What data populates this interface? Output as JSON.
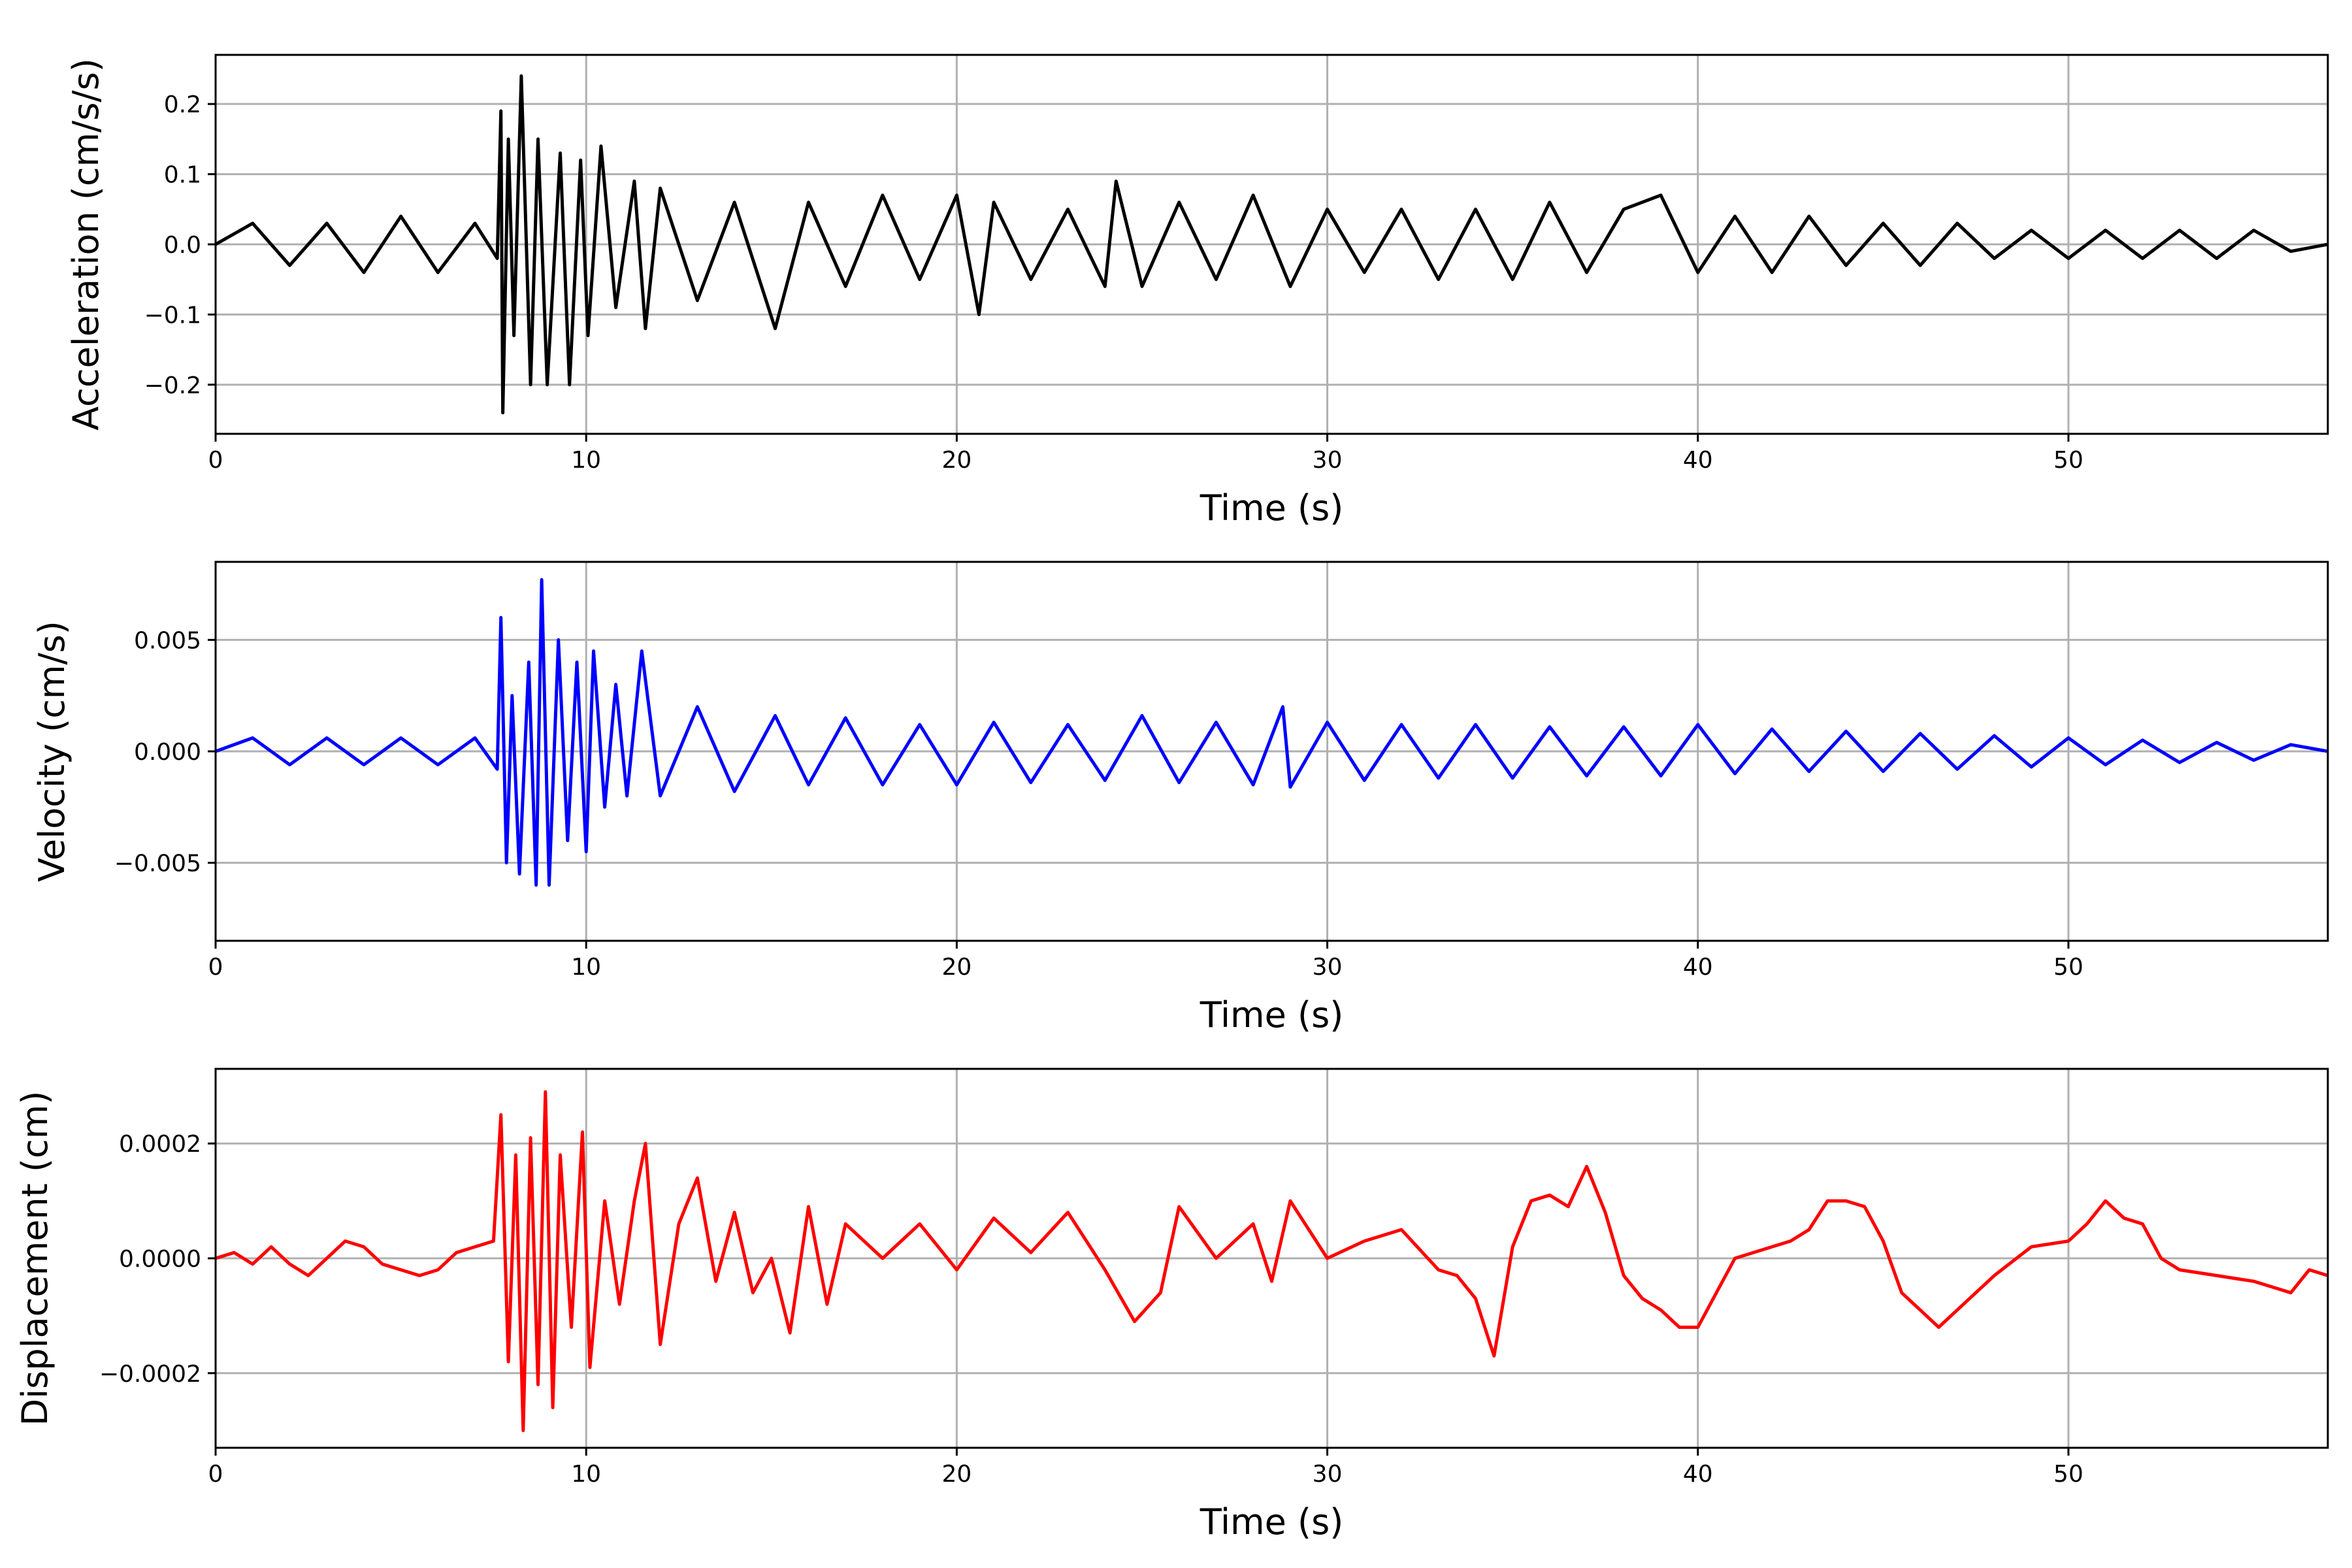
{
  "chart_data": [
    {
      "type": "line",
      "title": "",
      "xlabel": "Time (s)",
      "ylabel": "Acceleration (cm/s/s)",
      "xlim": [
        0,
        57
      ],
      "ylim": [
        -0.27,
        0.27
      ],
      "xticks": [
        0,
        10,
        20,
        30,
        40,
        50
      ],
      "xtick_labels": [
        "0",
        "10",
        "20",
        "30",
        "40",
        "50"
      ],
      "yticks": [
        -0.2,
        -0.1,
        0.0,
        0.1,
        0.2
      ],
      "ytick_labels": [
        "−0.2",
        "−0.1",
        "0.0",
        "0.1",
        "0.2"
      ],
      "grid": true,
      "color": "#000000",
      "series": [
        {
          "x": [
            0,
            1,
            2,
            3,
            4,
            5,
            6,
            7,
            7.6,
            7.7,
            7.75,
            7.9,
            8.05,
            8.25,
            8.5,
            8.7,
            8.95,
            9.3,
            9.55,
            9.85,
            10.05,
            10.4,
            10.8,
            11.3,
            11.6,
            12,
            13,
            14,
            15.1,
            16,
            17,
            18,
            19,
            20,
            20.6,
            21,
            22,
            23,
            24,
            24.3,
            25,
            26,
            27,
            28,
            29,
            30,
            31,
            32,
            33,
            34,
            35,
            36,
            37,
            38,
            39,
            40,
            41,
            42,
            43,
            44,
            45,
            46,
            47,
            48,
            49,
            50,
            51,
            52,
            53,
            54,
            55,
            56,
            57
          ],
          "y": [
            0.0,
            0.03,
            -0.03,
            0.03,
            -0.04,
            0.04,
            -0.04,
            0.03,
            -0.02,
            0.19,
            -0.24,
            0.15,
            -0.13,
            0.24,
            -0.2,
            0.15,
            -0.2,
            0.13,
            -0.2,
            0.12,
            -0.13,
            0.14,
            -0.09,
            0.09,
            -0.12,
            0.08,
            -0.08,
            0.06,
            -0.12,
            0.06,
            -0.06,
            0.07,
            -0.05,
            0.07,
            -0.1,
            0.06,
            -0.05,
            0.05,
            -0.06,
            0.09,
            -0.06,
            0.06,
            -0.05,
            0.07,
            -0.06,
            0.05,
            -0.04,
            0.05,
            -0.05,
            0.05,
            -0.05,
            0.06,
            -0.04,
            0.05,
            0.07,
            -0.04,
            0.04,
            -0.04,
            0.04,
            -0.03,
            0.03,
            -0.03,
            0.03,
            -0.02,
            0.02,
            -0.02,
            0.02,
            -0.02,
            0.02,
            -0.02,
            0.02,
            -0.01,
            0.0
          ]
        }
      ]
    },
    {
      "type": "line",
      "title": "",
      "xlabel": "Time (s)",
      "ylabel": "Velocity (cm/s)",
      "xlim": [
        0,
        57
      ],
      "ylim": [
        -0.0085,
        0.0085
      ],
      "xticks": [
        0,
        10,
        20,
        30,
        40,
        50
      ],
      "xtick_labels": [
        "0",
        "10",
        "20",
        "30",
        "40",
        "50"
      ],
      "yticks": [
        -0.005,
        0.0,
        0.005
      ],
      "ytick_labels": [
        "−0.005",
        "0.000",
        "0.005"
      ],
      "grid": true,
      "color": "#0000ff",
      "series": [
        {
          "x": [
            0,
            1,
            2,
            3,
            4,
            5,
            6,
            7,
            7.6,
            7.7,
            7.85,
            8.0,
            8.2,
            8.45,
            8.65,
            8.8,
            9.0,
            9.25,
            9.5,
            9.75,
            10.0,
            10.2,
            10.5,
            10.8,
            11.1,
            11.5,
            12,
            13,
            14,
            15.1,
            16,
            17,
            18,
            19,
            20,
            21,
            22,
            23,
            24,
            25,
            26,
            27,
            28,
            28.8,
            29,
            30,
            31,
            32,
            33,
            34,
            35,
            36,
            37,
            38,
            39,
            40,
            41,
            42,
            43,
            44,
            45,
            46,
            47,
            48,
            49,
            50,
            51,
            52,
            53,
            54,
            55,
            56,
            57
          ],
          "y": [
            0.0,
            0.0006,
            -0.0006,
            0.0006,
            -0.0006,
            0.0006,
            -0.0006,
            0.0006,
            -0.0008,
            0.006,
            -0.005,
            0.0025,
            -0.0055,
            0.004,
            -0.006,
            0.0077,
            -0.006,
            0.005,
            -0.004,
            0.004,
            -0.0045,
            0.0045,
            -0.0025,
            0.003,
            -0.002,
            0.0045,
            -0.002,
            0.002,
            -0.0018,
            0.0016,
            -0.0015,
            0.0015,
            -0.0015,
            0.0012,
            -0.0015,
            0.0013,
            -0.0014,
            0.0012,
            -0.0013,
            0.0016,
            -0.0014,
            0.0013,
            -0.0015,
            0.002,
            -0.0016,
            0.0013,
            -0.0013,
            0.0012,
            -0.0012,
            0.0012,
            -0.0012,
            0.0011,
            -0.0011,
            0.0011,
            -0.0011,
            0.0012,
            -0.001,
            0.001,
            -0.0009,
            0.0009,
            -0.0009,
            0.0008,
            -0.0008,
            0.0007,
            -0.0007,
            0.0006,
            -0.0006,
            0.0005,
            -0.0005,
            0.0004,
            -0.0004,
            0.0003,
            0.0
          ]
        }
      ]
    },
    {
      "type": "line",
      "title": "",
      "xlabel": "Time (s)",
      "ylabel": "Displacement (cm)",
      "xlim": [
        0,
        57
      ],
      "ylim": [
        -0.00033,
        0.00033
      ],
      "xticks": [
        0,
        10,
        20,
        30,
        40,
        50
      ],
      "xtick_labels": [
        "0",
        "10",
        "20",
        "30",
        "40",
        "50"
      ],
      "yticks": [
        -0.0002,
        0.0,
        0.0002
      ],
      "ytick_labels": [
        "−0.0002",
        "0.0000",
        "0.0002"
      ],
      "grid": true,
      "color": "#ff0000",
      "series": [
        {
          "x": [
            0,
            0.5,
            1,
            1.5,
            2,
            2.5,
            3,
            3.5,
            4,
            4.5,
            5,
            5.5,
            6,
            6.5,
            7,
            7.5,
            7.7,
            7.9,
            8.1,
            8.3,
            8.5,
            8.7,
            8.9,
            9.1,
            9.3,
            9.6,
            9.9,
            10.1,
            10.5,
            10.9,
            11.3,
            11.6,
            12,
            12.5,
            13,
            13.5,
            14,
            14.5,
            15,
            15.5,
            16,
            16.5,
            17,
            18,
            19,
            20,
            21,
            22,
            23,
            24,
            24.8,
            25.5,
            26,
            27,
            28,
            28.5,
            29,
            30,
            31,
            32,
            33,
            33.5,
            34,
            34.5,
            35,
            35.5,
            36,
            36.5,
            37,
            37.5,
            38,
            38.5,
            39,
            39.5,
            40,
            40.5,
            41,
            42,
            42.5,
            43,
            43.5,
            44,
            44.5,
            45,
            45.5,
            46,
            46.5,
            47,
            47.5,
            48,
            49,
            50,
            50.5,
            51,
            51.5,
            52,
            52.5,
            53,
            54,
            55,
            55.5,
            56,
            56.5,
            57
          ],
          "y": [
            0.0,
            1e-05,
            -1e-05,
            2e-05,
            -1e-05,
            -3e-05,
            0.0,
            3e-05,
            2e-05,
            -1e-05,
            -2e-05,
            -3e-05,
            -2e-05,
            1e-05,
            2e-05,
            3e-05,
            0.00025,
            -0.00018,
            0.00018,
            -0.0003,
            0.00021,
            -0.00022,
            0.00029,
            -0.00026,
            0.00018,
            -0.00012,
            0.00022,
            -0.00019,
            0.0001,
            -8e-05,
            0.0001,
            0.0002,
            -0.00015,
            6e-05,
            0.00014,
            -4e-05,
            8e-05,
            -6e-05,
            0.0,
            -0.00013,
            9e-05,
            -8e-05,
            6e-05,
            0.0,
            6e-05,
            -2e-05,
            7e-05,
            1e-05,
            8e-05,
            -2e-05,
            -0.00011,
            -6e-05,
            9e-05,
            0.0,
            6e-05,
            -4e-05,
            0.0001,
            0.0,
            3e-05,
            5e-05,
            -2e-05,
            -3e-05,
            -7e-05,
            -0.00017,
            2e-05,
            0.0001,
            0.00011,
            9e-05,
            0.00016,
            8e-05,
            -3e-05,
            -7e-05,
            -9e-05,
            -0.00012,
            -0.00012,
            -6e-05,
            0.0,
            2e-05,
            3e-05,
            5e-05,
            0.0001,
            0.0001,
            9e-05,
            3e-05,
            -6e-05,
            -9e-05,
            -0.00012,
            -9e-05,
            -6e-05,
            -3e-05,
            2e-05,
            3e-05,
            6e-05,
            0.0001,
            7e-05,
            6e-05,
            0.0,
            -2e-05,
            -3e-05,
            -4e-05,
            -5e-05,
            -6e-05,
            -2e-05,
            -3e-05
          ]
        }
      ]
    }
  ]
}
